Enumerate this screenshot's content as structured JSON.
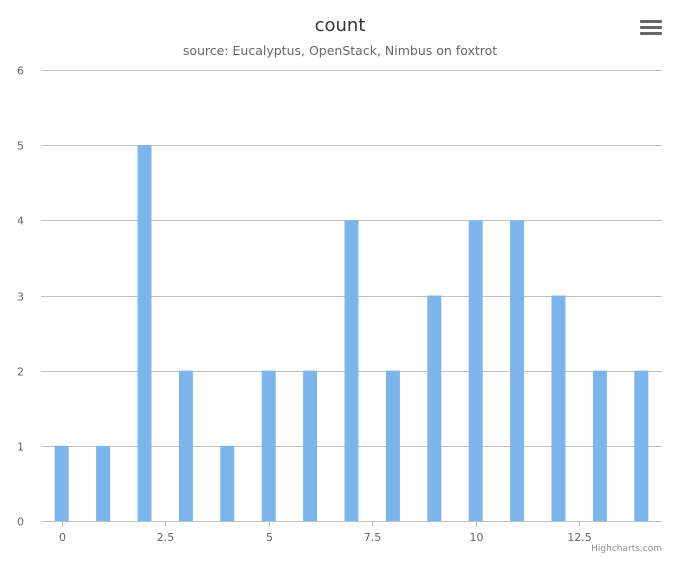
{
  "chart": {
    "title": "count",
    "subtitle": "source: Eucalyptus, OpenStack, Nimbus on foxtrot",
    "credits": "Highcharts.com",
    "menu_icon": "hamburger-menu-icon"
  },
  "colors": {
    "bar": "#7cb5ec",
    "grid": "#c0c0c0",
    "axis_text": "#666666",
    "title": "#333333"
  },
  "chart_data": {
    "type": "bar",
    "x": [
      0,
      1,
      2,
      3,
      4,
      5,
      6,
      7,
      8,
      9,
      10,
      11,
      12,
      13,
      14
    ],
    "values": [
      1,
      1,
      5,
      2,
      1,
      2,
      2,
      4,
      2,
      3,
      4,
      4,
      3,
      2,
      2
    ],
    "title": "count",
    "subtitle": "source: Eucalyptus, OpenStack, Nimbus on foxtrot",
    "xlabel": "",
    "ylabel": "",
    "xlim": [
      -0.5,
      14.5
    ],
    "ylim": [
      0,
      6
    ],
    "xticks": [
      0,
      2.5,
      5,
      7.5,
      10,
      12.5
    ],
    "xtick_labels": [
      "0",
      "2.5",
      "5",
      "7.5",
      "10",
      "12.5"
    ],
    "yticks": [
      0,
      1,
      2,
      3,
      4,
      5,
      6
    ],
    "ytick_labels": [
      "0",
      "1",
      "2",
      "3",
      "4",
      "5",
      "6"
    ],
    "grid": true,
    "legend": "none"
  }
}
